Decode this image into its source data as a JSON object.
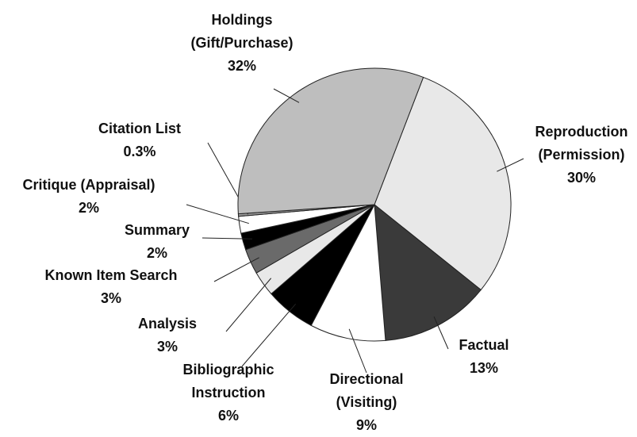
{
  "chart_data": {
    "type": "pie",
    "categories": [
      "Reproduction (Permission)",
      "Factual",
      "Directional (Visiting)",
      "Bibliographic Instruction",
      "Analysis",
      "Known Item Search",
      "Summary",
      "Critique (Appraisal)",
      "Citation List",
      "Holdings (Gift/Purchase)"
    ],
    "values": [
      30,
      13,
      9,
      6,
      3,
      3,
      2,
      2,
      0.3,
      32
    ],
    "value_labels": [
      "30%",
      "13%",
      "9%",
      "6%",
      "3%",
      "3%",
      "2%",
      "2%",
      "0.3%",
      "32%"
    ],
    "colors": [
      "#e8e8e8",
      "#3a3a3a",
      "#ffffff",
      "#000000",
      "#e8e8e8",
      "#6a6a6a",
      "#000000",
      "#ffffff",
      "#9a9a9a",
      "#bebebe"
    ]
  }
}
